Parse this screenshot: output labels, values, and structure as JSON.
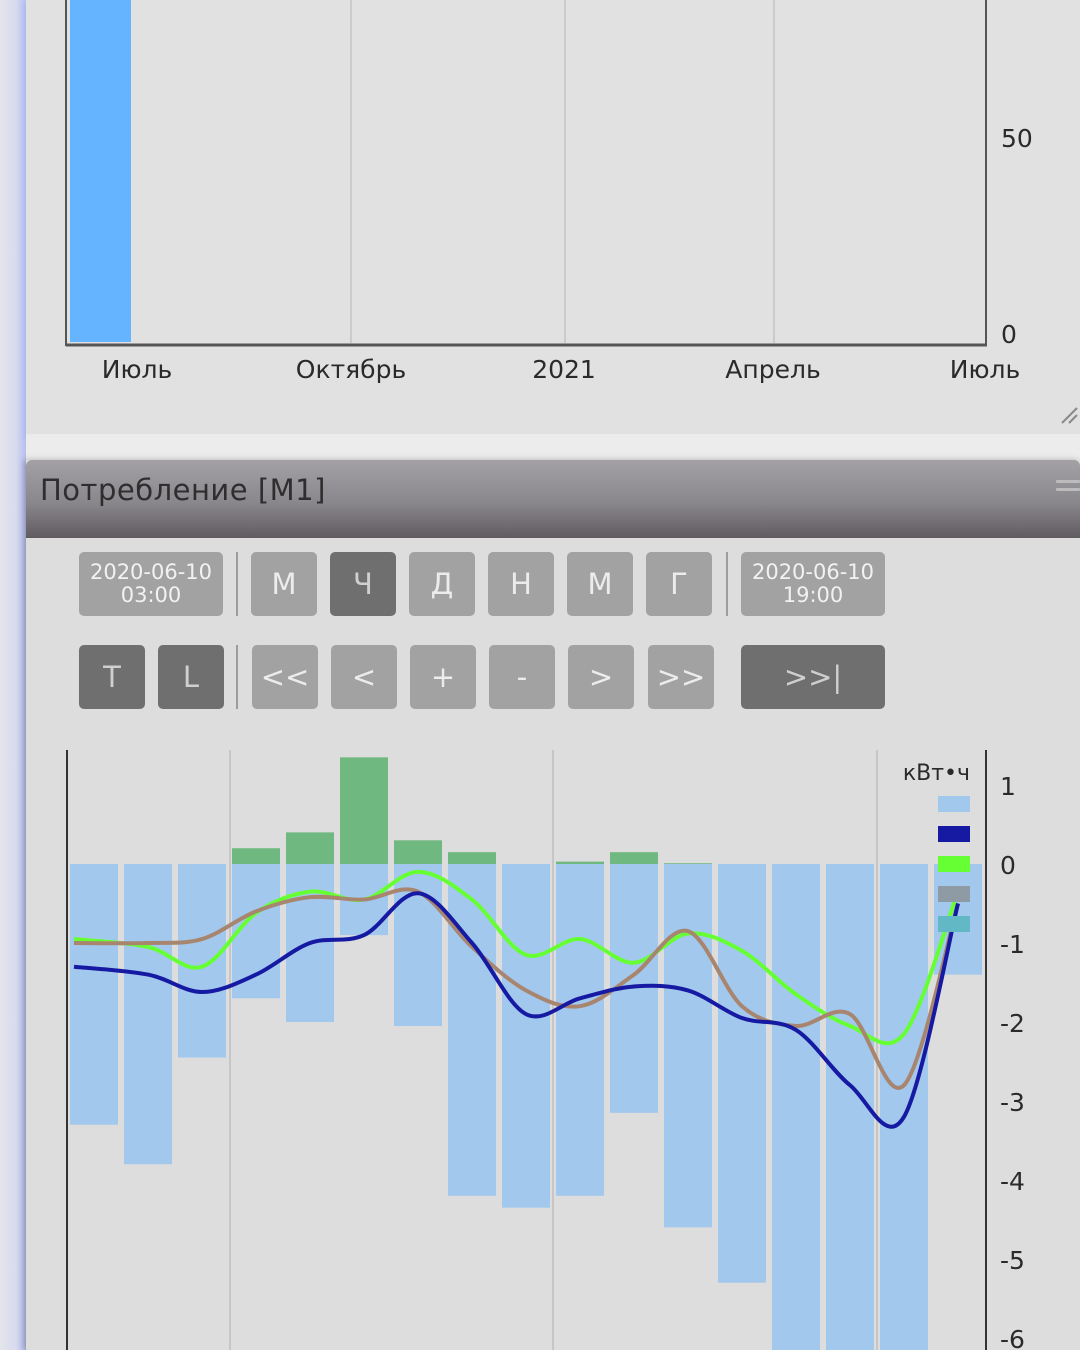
{
  "top_chart": {
    "x_ticks": [
      "Июль",
      "Октябрь",
      "2021",
      "Апрель",
      "Июль"
    ],
    "y_ticks": [
      "50",
      "0"
    ],
    "bar_color": "#64b4ff"
  },
  "panel": {
    "title": "Потребление [М1]",
    "start_date": "2020-06-10",
    "start_time": "03:00",
    "end_date": "2020-06-10",
    "end_time": "19:00",
    "period_buttons": [
      "М",
      "Ч",
      "Д",
      "Н",
      "М",
      "Г"
    ],
    "selected_period": "Ч",
    "nav_buttons": [
      "<<",
      "<",
      "+",
      "-",
      ">",
      ">>"
    ],
    "mode_buttons": [
      "T",
      "L"
    ],
    "latest_button": ">>|"
  },
  "chart_data": {
    "type": "bar",
    "unit_label": "кВт•ч",
    "y_ticks": [
      "1",
      "0",
      "-1",
      "-2",
      "-3",
      "-4",
      "-5",
      "-6"
    ],
    "ylim": [
      -6.2,
      1.1
    ],
    "bars_negative": [
      -3.3,
      -3.8,
      -2.45,
      -1.7,
      -2.0,
      -0.9,
      -2.05,
      -4.2,
      -4.35,
      -4.2,
      -3.15,
      -4.6,
      -5.3,
      -6.2,
      -6.2,
      -6.2,
      -1.4
    ],
    "bars_positive": [
      0,
      0,
      0,
      0.2,
      0.4,
      1.35,
      0.3,
      0.15,
      0,
      0.03,
      0.15,
      0.01,
      0,
      0,
      0,
      0,
      0
    ],
    "series": [
      {
        "color": "#161aa2",
        "values": [
          -1.3,
          -1.4,
          -1.62,
          -1.4,
          -1.0,
          -0.9,
          -0.37,
          -1.0,
          -1.9,
          -1.7,
          -1.55,
          -1.6,
          -1.95,
          -2.1,
          -2.8,
          -3.2,
          -0.5
        ]
      },
      {
        "color": "#66ff33",
        "values": [
          -0.95,
          -1.05,
          -1.3,
          -0.62,
          -0.35,
          -0.45,
          -0.1,
          -0.45,
          -1.15,
          -0.95,
          -1.25,
          -0.88,
          -1.1,
          -1.65,
          -2.05,
          -2.15,
          -0.35
        ]
      },
      {
        "color": "#a8856e",
        "values": [
          -1.0,
          -1.0,
          -0.95,
          -0.6,
          -0.42,
          -0.45,
          -0.35,
          -1.05,
          -1.6,
          -1.8,
          -1.4,
          -0.85,
          -1.8,
          -2.05,
          -1.9,
          -2.8,
          -0.5
        ]
      }
    ],
    "legend_colors": [
      "#a2c8ee",
      "#161aa2",
      "#66ff33",
      "#8e9aa4",
      "#62b8c4"
    ]
  }
}
